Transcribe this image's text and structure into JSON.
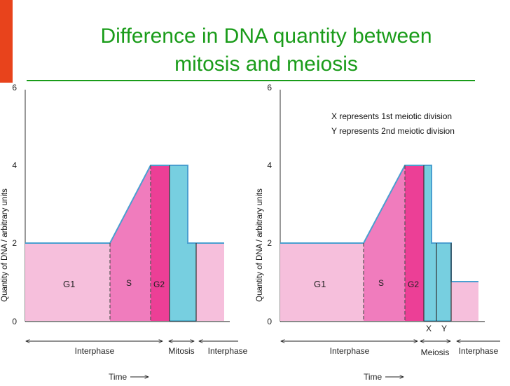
{
  "slide": {
    "title_line1": "Difference in DNA quantity between",
    "title_line2": "mitosis and meiosis"
  },
  "colors": {
    "title": "#1a9c1a",
    "accent_bar": "#e8431c",
    "g1": "#f6bfdc",
    "s": "#f07cbd",
    "g2": "#ec3f96",
    "division": "#77cfe0",
    "outline": "#4a9fd0"
  },
  "chart_data": [
    {
      "type": "area",
      "ylabel": "Quantity of DNA / arbitrary units",
      "xlabel": "Time",
      "ylim": [
        0,
        6
      ],
      "yticks": [
        0,
        2,
        4,
        6
      ],
      "phases": [
        "G1",
        "S",
        "G2"
      ],
      "series": [
        {
          "x": [
            0,
            15,
            21,
            23.5,
            26.5,
            27.5,
            31
          ],
          "y": [
            2,
            2,
            4,
            4,
            4,
            2,
            2
          ]
        }
      ],
      "stages": [
        {
          "label": "Interphase",
          "start": 0,
          "end": 23.5
        },
        {
          "label": "Mitosis",
          "start": 23.5,
          "end": 27.5
        },
        {
          "label": "Interphase",
          "start": 27.5,
          "end": 31
        }
      ]
    },
    {
      "type": "area",
      "ylabel": "Quantity of DNA / arbitrary units",
      "xlabel": "Time",
      "ylim": [
        0,
        6
      ],
      "yticks": [
        0,
        2,
        4,
        6
      ],
      "phases": [
        "G1",
        "S",
        "G2"
      ],
      "series": [
        {
          "x": [
            0,
            15,
            21,
            23.5,
            24.6,
            26.5,
            28.5,
            32.5
          ],
          "y": [
            2,
            2,
            4,
            4,
            2,
            2,
            1,
            1
          ]
        }
      ],
      "division_marks": [
        "X",
        "Y"
      ],
      "annotations": [
        "X represents 1st meiotic division",
        "Y represents 2nd meiotic division"
      ],
      "stages": [
        {
          "label": "Interphase",
          "start": 0,
          "end": 23.5
        },
        {
          "label": "Meiosis",
          "start": 23.5,
          "end": 28.5
        },
        {
          "label": "Interphase",
          "start": 28.5,
          "end": 32.5
        }
      ]
    }
  ]
}
